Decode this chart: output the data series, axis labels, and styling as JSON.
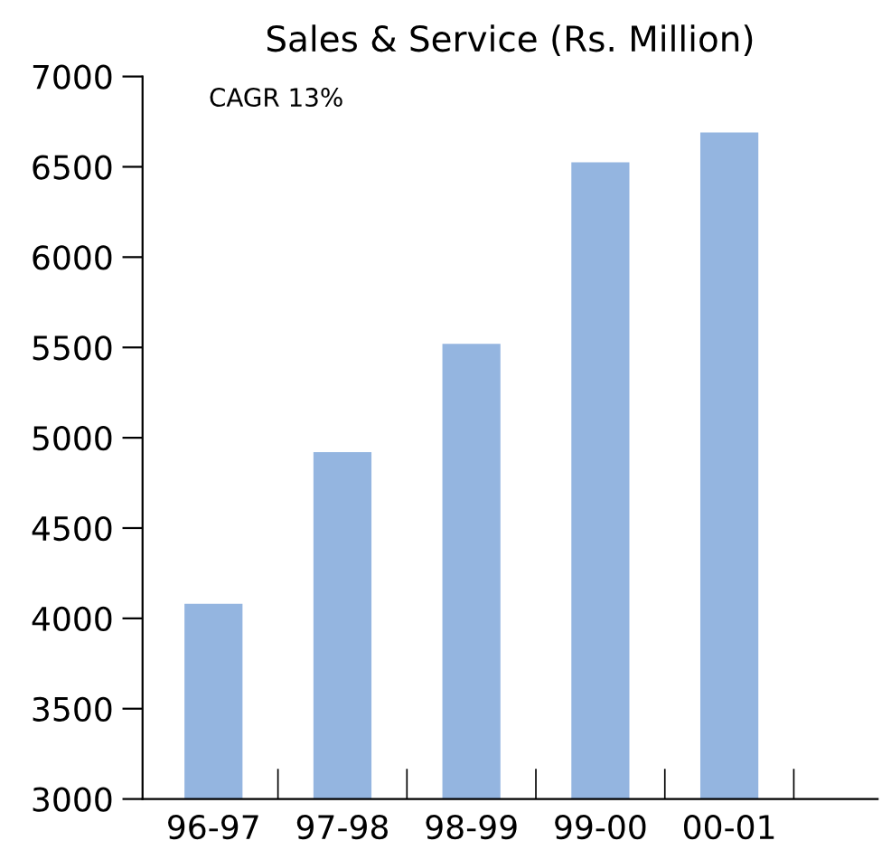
{
  "chart_data": {
    "type": "bar",
    "title": "Sales & Service (Rs. Million)",
    "categories": [
      "96-97",
      "97-98",
      "98-99",
      "99-00",
      "00-01"
    ],
    "values": [
      4080,
      4920,
      5520,
      6525,
      6690
    ],
    "color": "#94b5e0",
    "ylim": [
      3000,
      7000
    ],
    "yticks": [
      3000,
      3500,
      4000,
      4500,
      5000,
      5500,
      6000,
      6500,
      7000
    ],
    "annotations": [
      "CAGR 13%"
    ],
    "grid": false
  }
}
